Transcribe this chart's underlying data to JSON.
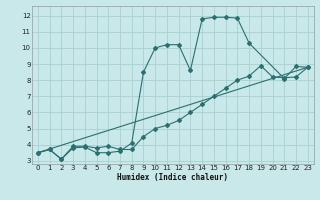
{
  "xlabel": "Humidex (Indice chaleur)",
  "bg_color": "#c8e8ea",
  "grid_color": "#aacfd2",
  "line_color": "#2a7070",
  "xlim": [
    -0.5,
    23.5
  ],
  "ylim": [
    2.8,
    12.6
  ],
  "xticks": [
    0,
    1,
    2,
    3,
    4,
    5,
    6,
    7,
    8,
    9,
    10,
    11,
    12,
    13,
    14,
    15,
    16,
    17,
    18,
    19,
    20,
    21,
    22,
    23
  ],
  "yticks": [
    3,
    4,
    5,
    6,
    7,
    8,
    9,
    10,
    11,
    12
  ],
  "line1_x": [
    0,
    1,
    2,
    3,
    4,
    5,
    6,
    7,
    8,
    9,
    10,
    11,
    12,
    13,
    14,
    15,
    16,
    17,
    18,
    21,
    22,
    23
  ],
  "line1_y": [
    3.5,
    3.7,
    3.1,
    3.8,
    3.85,
    3.5,
    3.5,
    3.6,
    4.1,
    8.5,
    10.0,
    10.2,
    10.2,
    8.6,
    11.8,
    11.9,
    11.9,
    11.85,
    10.3,
    8.1,
    8.85,
    8.8
  ],
  "line2_x": [
    0,
    1,
    2,
    3,
    4,
    5,
    6,
    7,
    8,
    9,
    10,
    11,
    12,
    13,
    14,
    15,
    16,
    17,
    18,
    19,
    20,
    21,
    22,
    23
  ],
  "line2_y": [
    3.5,
    3.7,
    3.1,
    3.9,
    3.9,
    3.8,
    3.9,
    3.7,
    3.7,
    4.5,
    5.0,
    5.2,
    5.5,
    6.0,
    6.5,
    7.0,
    7.5,
    8.0,
    8.25,
    8.9,
    8.2,
    8.15,
    8.2,
    8.8
  ],
  "line3_x": [
    0,
    23
  ],
  "line3_y": [
    3.5,
    8.8
  ]
}
